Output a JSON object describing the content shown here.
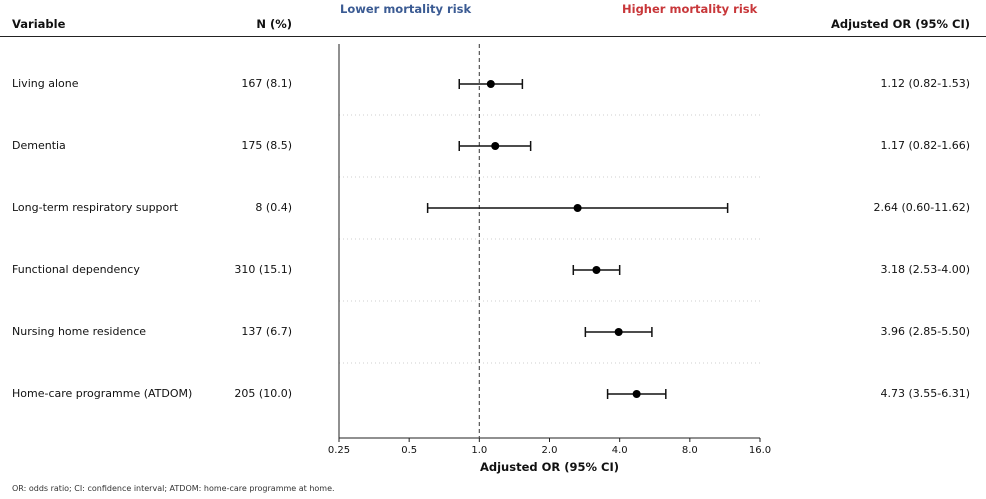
{
  "header": {
    "variable": "Variable",
    "n_pct": "N (%)",
    "or_ci": "Adjusted OR (95% CI)",
    "lower_risk": "Lower mortality risk",
    "higher_risk": "Higher mortality risk"
  },
  "colors": {
    "lower": "#3b5b93",
    "higher": "#c8373a",
    "marker": "#000000"
  },
  "rows": [
    {
      "label": "Living alone",
      "n": "167 (8.1)",
      "ci_text": "1.12 (0.82-1.53)"
    },
    {
      "label": "Dementia",
      "n": "175 (8.5)",
      "ci_text": "1.17 (0.82-1.66)"
    },
    {
      "label": "Long-term respiratory support",
      "n": "8 (0.4)",
      "ci_text": "2.64 (0.60-11.62)"
    },
    {
      "label": "Functional dependency",
      "n": "310 (15.1)",
      "ci_text": "3.18 (2.53-4.00)"
    },
    {
      "label": "Nursing home residence",
      "n": "137 (6.7)",
      "ci_text": "3.96 (2.85-5.50)"
    },
    {
      "label": "Home-care programme (ATDOM)",
      "n": "205 (10.0)",
      "ci_text": "4.73 (3.55-6.31)"
    }
  ],
  "chart_data": {
    "type": "scatter",
    "subtype": "forest",
    "xlabel": "Adjusted OR (95% CI)",
    "xscale": "log2",
    "xlim": [
      0.25,
      16.0
    ],
    "xticks": [
      0.25,
      0.5,
      1.0,
      2.0,
      4.0,
      8.0,
      16.0
    ],
    "xtick_labels": [
      "0.25",
      "0.5",
      "1.0",
      "2.0",
      "4.0",
      "8.0",
      "16.0"
    ],
    "reference_line": 1.0,
    "categories": [
      "Living alone",
      "Dementia",
      "Long-term respiratory support",
      "Functional dependency",
      "Nursing home residence",
      "Home-care programme (ATDOM)"
    ],
    "or": [
      1.12,
      1.17,
      2.64,
      3.18,
      3.96,
      4.73
    ],
    "ci_low": [
      0.82,
      0.82,
      0.6,
      2.53,
      2.85,
      3.55
    ],
    "ci_high": [
      1.53,
      1.66,
      11.62,
      4.0,
      5.5,
      6.31
    ],
    "grid": "horizontal dotted separators"
  },
  "footnote": "OR: odds ratio; CI: confidence interval; ATDOM: home-care programme at home."
}
